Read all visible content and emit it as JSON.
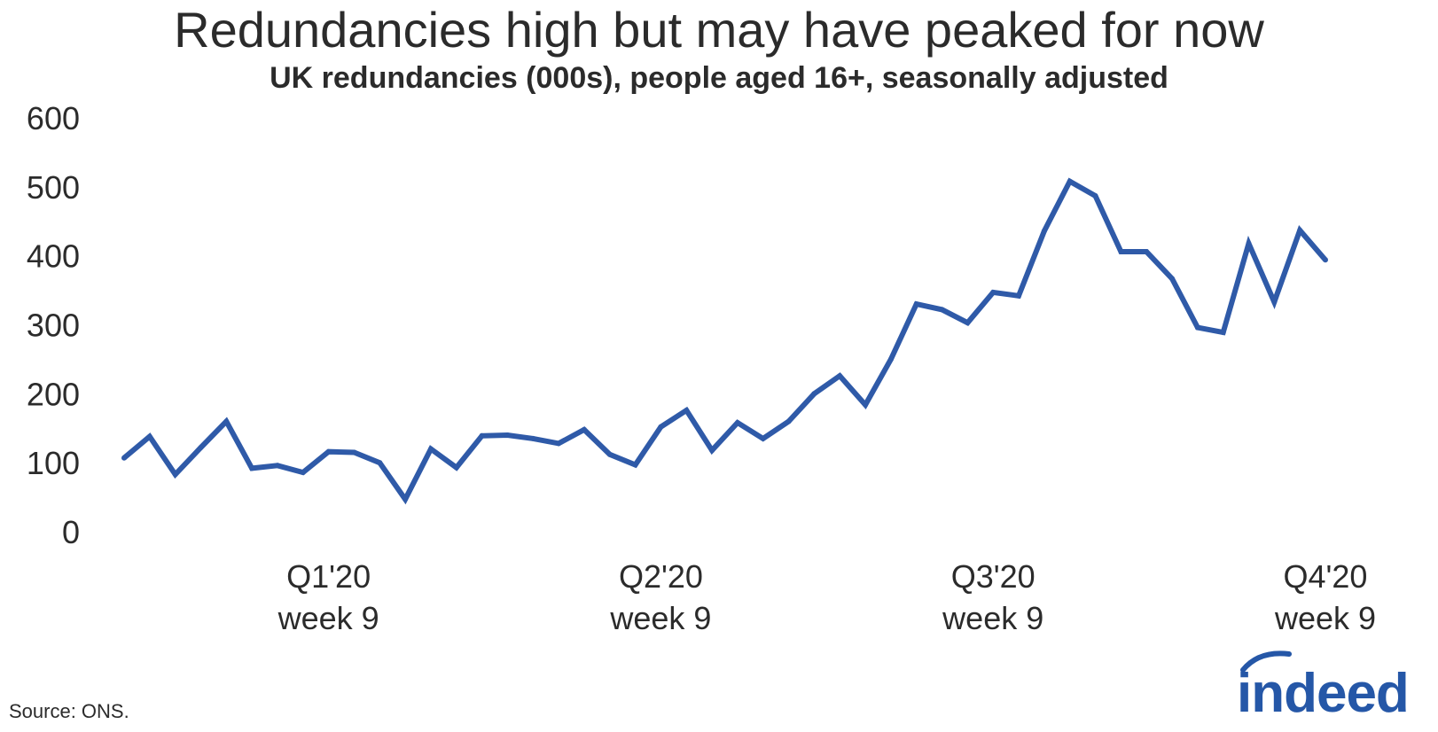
{
  "title": "Redundancies high but may have peaked for now",
  "subtitle": "UK redundancies (000s), people aged 16+, seasonally adjusted",
  "source": "Source: ONS.",
  "logo_text": "indeed",
  "colors": {
    "line": "#2f5aa8",
    "logo": "#2557a7",
    "text": "#2b2b2b"
  },
  "chart_data": {
    "type": "line",
    "title": "Redundancies high but may have peaked for now",
    "subtitle": "UK redundancies (000s), people aged 16+, seasonally adjusted",
    "xlabel": "",
    "ylabel": "",
    "ylim": [
      0,
      600
    ],
    "yticks": [
      0,
      100,
      200,
      300,
      400,
      500,
      600
    ],
    "grid": false,
    "x_tick_labels": [
      {
        "index": 8,
        "line1": "Q1'20",
        "line2": "week 9"
      },
      {
        "index": 21,
        "line1": "Q2'20",
        "line2": "week 9"
      },
      {
        "index": 34,
        "line1": "Q3'20",
        "line2": "week 9"
      },
      {
        "index": 47,
        "line1": "Q4'20",
        "line2": "week 9"
      }
    ],
    "series": [
      {
        "values": [
          107,
          138,
          83,
          122,
          160,
          92,
          96,
          86,
          116,
          115,
          100,
          47,
          120,
          93,
          139,
          140,
          135,
          128,
          148,
          112,
          97,
          152,
          176,
          118,
          158,
          135,
          160,
          200,
          226,
          184,
          250,
          330,
          322,
          303,
          347,
          342,
          436,
          508,
          487,
          406,
          406,
          367,
          296,
          289,
          418,
          333,
          437,
          394
        ]
      }
    ]
  }
}
